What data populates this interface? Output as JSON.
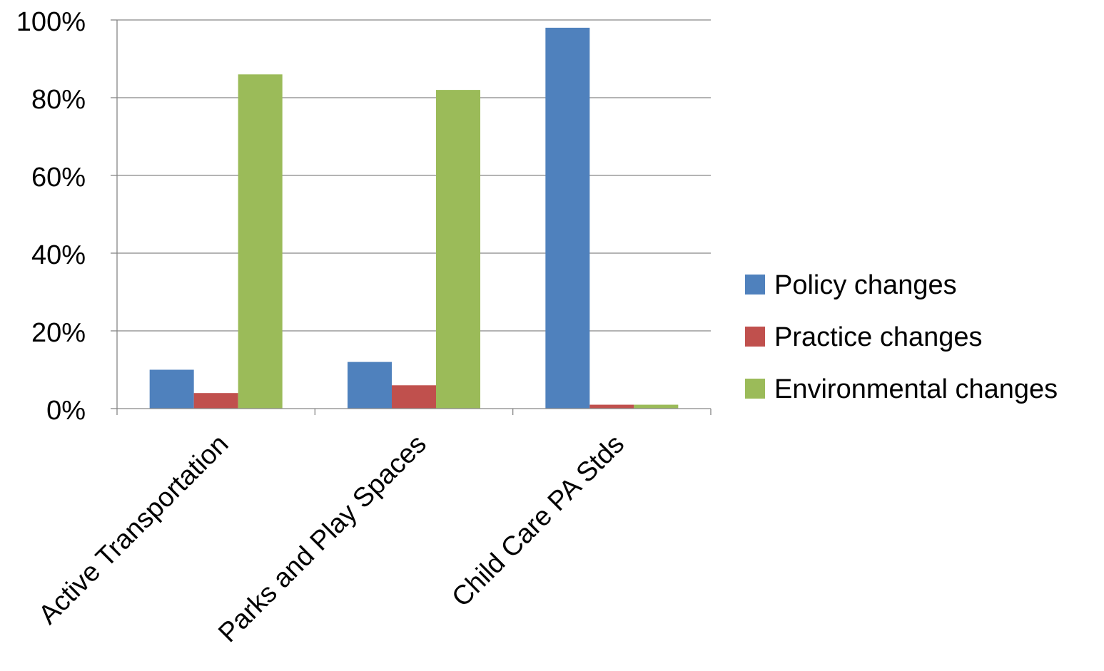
{
  "chart_data": {
    "type": "bar",
    "title": "",
    "xlabel": "",
    "ylabel": "",
    "categories": [
      "Active Transportation",
      "Parks and Play Spaces",
      "Child Care PA Stds"
    ],
    "series": [
      {
        "name": "Policy changes",
        "values": [
          10,
          12,
          98
        ],
        "color": "#4F81BD"
      },
      {
        "name": "Practice changes",
        "values": [
          4,
          6,
          1
        ],
        "color": "#C0504D"
      },
      {
        "name": "Environmental changes",
        "values": [
          86,
          82,
          1
        ],
        "color": "#9BBB59"
      }
    ],
    "ylim": [
      0,
      100
    ],
    "yticks": [
      0,
      20,
      40,
      60,
      80,
      100
    ],
    "ytick_labels": [
      "0%",
      "20%",
      "40%",
      "60%",
      "80%",
      "100%"
    ],
    "grid": true,
    "legend_position": "right"
  }
}
